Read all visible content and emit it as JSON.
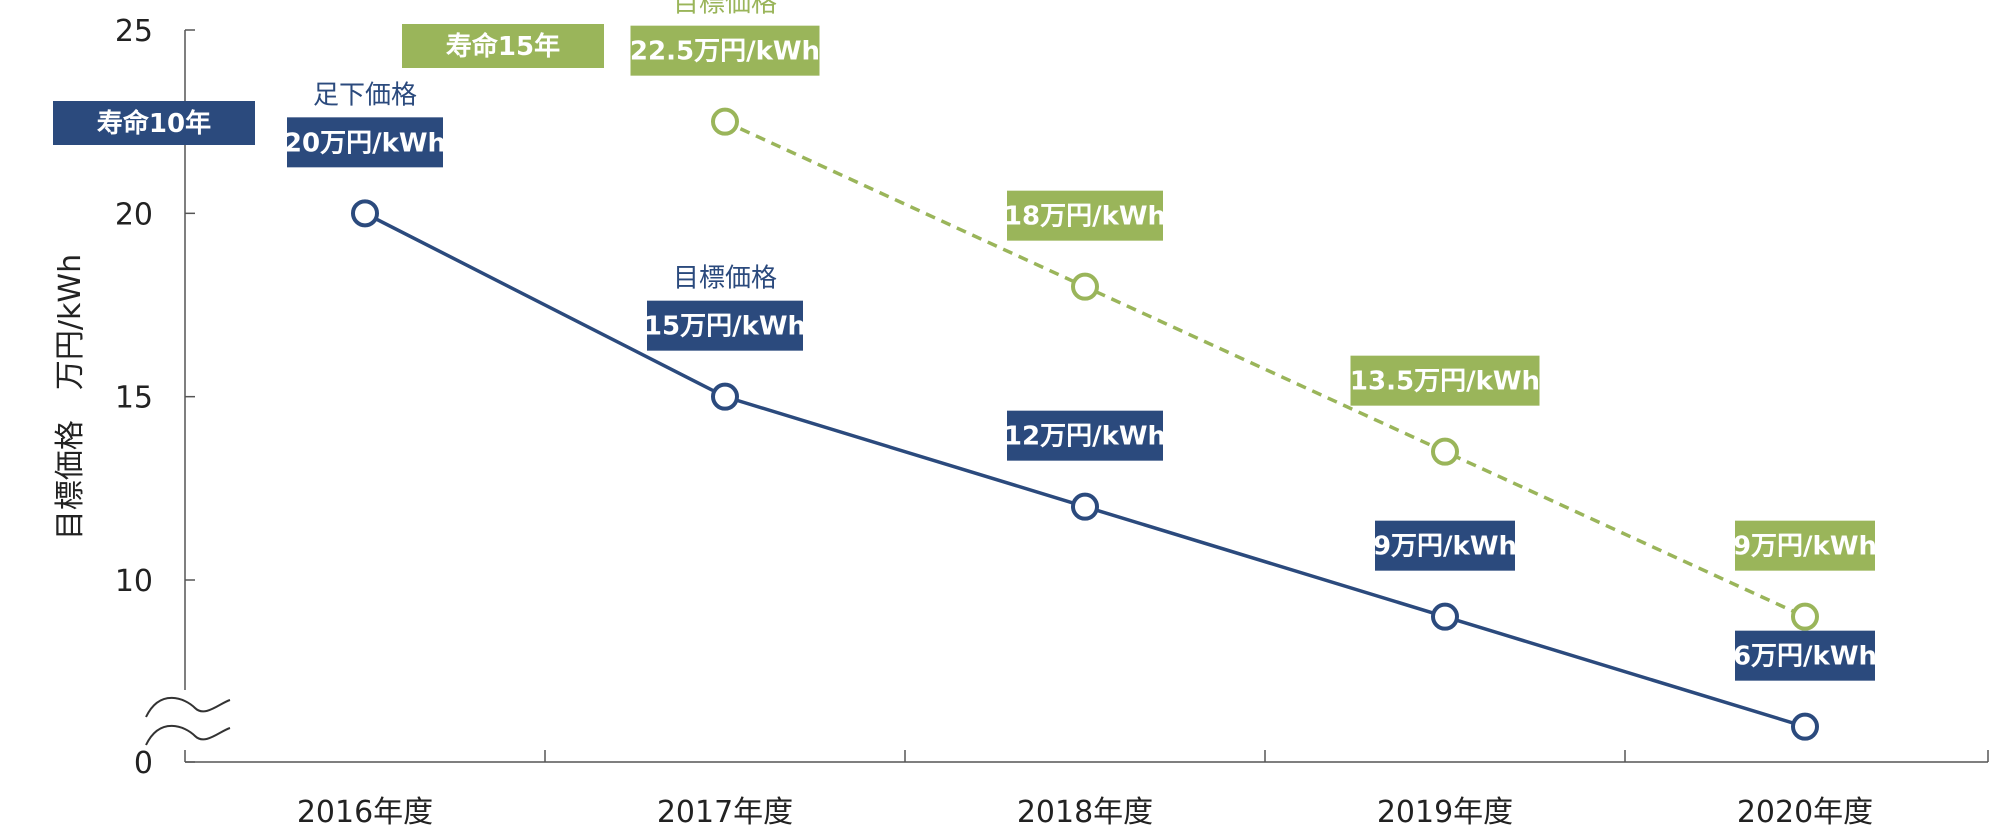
{
  "chart_data": {
    "type": "line",
    "categories": [
      "2016年度",
      "2017年度",
      "2018年度",
      "2019年度",
      "2020年度"
    ],
    "ylabel": "目標価格　万円/kWh",
    "ylim": [
      0,
      25
    ],
    "yticks": [
      0,
      10,
      15,
      20,
      25
    ],
    "axis_break": true,
    "grid": false,
    "series": [
      {
        "name": "寿命10年",
        "color": "#2b4a7d",
        "style": "solid",
        "values": [
          20,
          15,
          12,
          9,
          6
        ],
        "labels": [
          "20万円/kWh",
          "15万円/kWh",
          "12万円/kWh",
          "9万円/kWh",
          "6万円/kWh"
        ],
        "annotations": [
          {
            "index": 0,
            "text": "足下価格"
          },
          {
            "index": 1,
            "text": "目標価格"
          }
        ]
      },
      {
        "name": "寿命15年",
        "color": "#9ab55a",
        "style": "dashed",
        "x": [
          "2017年度",
          "2018年度",
          "2019年度",
          "2020年度"
        ],
        "values": [
          22.5,
          18,
          13.5,
          9
        ],
        "labels": [
          "22.5万円/kWh",
          "18万円/kWh",
          "13.5万円/kWh",
          "9万円/kWh"
        ],
        "annotations": [
          {
            "index": 0,
            "text": "目標価格"
          }
        ]
      }
    ]
  }
}
